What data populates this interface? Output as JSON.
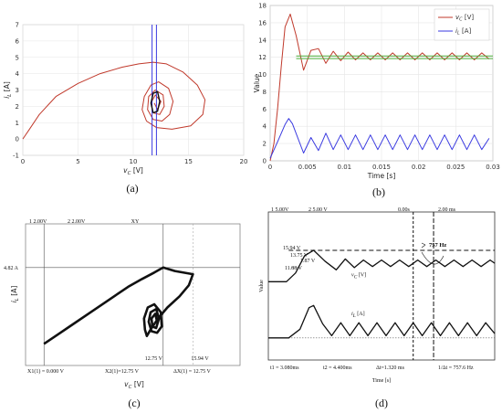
{
  "colors": {
    "red": "#c0392b",
    "blue": "#3a3ae0",
    "green": "#4caf3a",
    "black": "#111111",
    "grid": "#e6e6e6"
  },
  "chart_data": [
    {
      "id": "a",
      "caption": "(a)",
      "type": "line",
      "xlabel": "v_C [V]",
      "ylabel": "i_L [A]",
      "xlim": [
        0,
        20
      ],
      "ylim": [
        -1,
        7
      ],
      "xticks": [
        0,
        5,
        10,
        15,
        20
      ],
      "yticks": [
        -1,
        0,
        1,
        2,
        3,
        4,
        5,
        6,
        7
      ],
      "grid": true,
      "series": [
        {
          "color": "red",
          "points": [
            [
              0,
              0
            ],
            [
              0.5,
              0.5
            ],
            [
              1.5,
              1.5
            ],
            [
              3,
              2.6
            ],
            [
              5,
              3.4
            ],
            [
              7,
              4.0
            ],
            [
              9,
              4.4
            ],
            [
              10.5,
              4.6
            ],
            [
              11.8,
              4.7
            ],
            [
              13,
              4.6
            ],
            [
              14.5,
              4.1
            ],
            [
              15.8,
              3.3
            ],
            [
              16.5,
              2.4
            ],
            [
              16.3,
              1.5
            ],
            [
              15.2,
              0.8
            ],
            [
              13.5,
              0.6
            ],
            [
              12.1,
              0.7
            ],
            [
              11.2,
              1.1
            ],
            [
              10.8,
              1.8
            ],
            [
              11,
              2.6
            ],
            [
              11.6,
              3.3
            ],
            [
              12.3,
              3.5
            ],
            [
              13.2,
              3.1
            ],
            [
              13.6,
              2.3
            ],
            [
              13.3,
              1.5
            ],
            [
              12.6,
              1.1
            ],
            [
              11.8,
              1.2
            ],
            [
              11.3,
              1.8
            ],
            [
              11.4,
              2.6
            ],
            [
              12,
              3.0
            ],
            [
              12.7,
              2.7
            ],
            [
              12.8,
              2.0
            ],
            [
              12.4,
              1.5
            ],
            [
              11.8,
              1.6
            ],
            [
              11.6,
              2.2
            ],
            [
              12,
              2.7
            ],
            [
              12.5,
              2.3
            ],
            [
              12.2,
              1.8
            ],
            [
              11.9,
              2.2
            ]
          ]
        },
        {
          "color": "blue",
          "points": [
            [
              11.7,
              -1
            ],
            [
              11.7,
              7
            ]
          ]
        },
        {
          "color": "blue",
          "points": [
            [
              12.1,
              -1
            ],
            [
              12.1,
              7
            ]
          ]
        },
        {
          "color": "black",
          "points": [
            [
              11.8,
              1.6
            ],
            [
              11.6,
              2.2
            ],
            [
              11.8,
              2.8
            ],
            [
              12.2,
              2.9
            ],
            [
              12.4,
              2.3
            ],
            [
              12.2,
              1.7
            ],
            [
              11.8,
              1.6
            ]
          ]
        }
      ]
    },
    {
      "id": "b",
      "caption": "(b)",
      "type": "line",
      "xlabel": "Time [s]",
      "ylabel": "Value",
      "xlim": [
        0,
        0.03
      ],
      "ylim": [
        0,
        18
      ],
      "xticks": [
        "0",
        "0.005",
        "0.01",
        "0.015",
        "0.02",
        "0.025",
        "0.03"
      ],
      "yticks": [
        0,
        2,
        4,
        6,
        8,
        10,
        12,
        14,
        16,
        18
      ],
      "grid": true,
      "legend": [
        "v_C [V]",
        "i_L [A]"
      ],
      "legend_position": "top-right",
      "series": [
        {
          "name": "v_C [V]",
          "color": "red",
          "points": [
            [
              0,
              0
            ],
            [
              0.0005,
              2
            ],
            [
              0.001,
              6
            ],
            [
              0.0015,
              11
            ],
            [
              0.002,
              15.5
            ],
            [
              0.0027,
              17
            ],
            [
              0.0035,
              14.5
            ],
            [
              0.0045,
              10.5
            ],
            [
              0.0055,
              12.8
            ],
            [
              0.0065,
              13
            ],
            [
              0.0075,
              11.3
            ],
            [
              0.0085,
              12.7
            ],
            [
              0.0095,
              11.6
            ],
            [
              0.0105,
              12.6
            ],
            [
              0.0115,
              11.7
            ],
            [
              0.0125,
              12.5
            ],
            [
              0.0135,
              11.7
            ],
            [
              0.0145,
              12.5
            ],
            [
              0.0155,
              11.7
            ],
            [
              0.0165,
              12.5
            ],
            [
              0.0175,
              11.7
            ],
            [
              0.0185,
              12.5
            ],
            [
              0.0195,
              11.7
            ],
            [
              0.0205,
              12.5
            ],
            [
              0.0215,
              11.7
            ],
            [
              0.0225,
              12.5
            ],
            [
              0.0235,
              11.7
            ],
            [
              0.0245,
              12.5
            ],
            [
              0.0255,
              11.7
            ],
            [
              0.0265,
              12.5
            ],
            [
              0.0275,
              11.7
            ],
            [
              0.0285,
              12.5
            ],
            [
              0.0295,
              11.8
            ]
          ]
        },
        {
          "name": "i_L [A]",
          "color": "blue",
          "points": [
            [
              0,
              0.3
            ],
            [
              0.001,
              2.2
            ],
            [
              0.002,
              4.2
            ],
            [
              0.0025,
              4.9
            ],
            [
              0.003,
              4.3
            ],
            [
              0.0045,
              0.9
            ],
            [
              0.0055,
              2.7
            ],
            [
              0.0065,
              1.2
            ],
            [
              0.0075,
              3.2
            ],
            [
              0.0085,
              1.3
            ],
            [
              0.0095,
              3.0
            ],
            [
              0.0105,
              1.3
            ],
            [
              0.0115,
              3.0
            ],
            [
              0.0125,
              1.3
            ],
            [
              0.0135,
              3.0
            ],
            [
              0.0145,
              1.3
            ],
            [
              0.0155,
              3.0
            ],
            [
              0.0165,
              1.3
            ],
            [
              0.0175,
              3.0
            ],
            [
              0.0185,
              1.3
            ],
            [
              0.0195,
              3.0
            ],
            [
              0.0205,
              1.3
            ],
            [
              0.0215,
              3.0
            ],
            [
              0.0225,
              1.3
            ],
            [
              0.0235,
              3.0
            ],
            [
              0.0245,
              1.3
            ],
            [
              0.0255,
              3.0
            ],
            [
              0.0265,
              1.3
            ],
            [
              0.0275,
              3.0
            ],
            [
              0.0285,
              1.3
            ],
            [
              0.0295,
              2.6
            ]
          ]
        },
        {
          "color": "green",
          "points": [
            [
              0.0035,
              11.85
            ],
            [
              0.03,
              11.85
            ]
          ]
        },
        {
          "color": "green",
          "points": [
            [
              0.0035,
              12.15
            ],
            [
              0.03,
              12.15
            ]
          ]
        }
      ]
    },
    {
      "id": "c",
      "caption": "(c)",
      "type": "line",
      "xlabel": "v_C [V]",
      "ylabel": "i_L [A]",
      "header": {
        "ch1": "1   2.00V",
        "ch2": "2  2.00V",
        "mode": "XY"
      },
      "annotations": {
        "y_marker": "4.82 A",
        "x_marker": "12.75 V",
        "x2_marker": "15.94 V",
        "bottom_left": "X1(1) = 0.000 V",
        "bottom_mid": "X2(1)=12.75 V",
        "bottom_right": "ΔX(1) = 12.75 V"
      },
      "xlim": [
        -1,
        20
      ],
      "ylim": [
        -0.5,
        7
      ],
      "series": [
        {
          "color": "black",
          "points": [
            [
              0,
              0
            ],
            [
              1.5,
              0.6
            ],
            [
              3,
              1.2
            ],
            [
              5,
              2.0
            ],
            [
              7,
              2.8
            ],
            [
              9,
              3.6
            ],
            [
              10.5,
              4.1
            ],
            [
              11.8,
              4.5
            ],
            [
              12.75,
              4.82
            ],
            [
              14,
              4.6
            ],
            [
              15.94,
              4.4
            ],
            [
              15.5,
              3.7
            ],
            [
              14.5,
              3.0
            ],
            [
              13.2,
              2.3
            ],
            [
              12.2,
              1.6
            ],
            [
              11.4,
              0.9
            ],
            [
              11.0,
              0.5
            ],
            [
              10.8,
              0.9
            ],
            [
              10.7,
              1.6
            ],
            [
              11.1,
              2.3
            ],
            [
              11.8,
              2.5
            ],
            [
              12.5,
              2.0
            ],
            [
              12.6,
              1.1
            ],
            [
              12.1,
              0.7
            ],
            [
              11.5,
              0.8
            ],
            [
              11.2,
              1.4
            ],
            [
              11.4,
              2.0
            ],
            [
              12.0,
              2.2
            ],
            [
              12.3,
              1.6
            ],
            [
              12.0,
              1.0
            ],
            [
              11.6,
              1.1
            ],
            [
              11.5,
              1.6
            ],
            [
              11.9,
              1.9
            ],
            [
              12.1,
              1.4
            ]
          ]
        }
      ]
    },
    {
      "id": "d",
      "caption": "(d)",
      "type": "line",
      "xlabel": "Time [s]",
      "ylabel": "Value",
      "header": {
        "ch1": "1  5.00V",
        "ch2": "2  5.00 V",
        "delay": "0.00s",
        "timebase": "2.00 ms"
      },
      "annotations": {
        "freq": "757 Hz",
        "v1": "15.94 V",
        "v2": "13.75 V",
        "v3": "1.87 V",
        "v4": "11.88 V",
        "series_vc": "v_C [V]",
        "series_il": "i_L [A]",
        "t1": "t1 = 3.080ms",
        "t2": "t2 = 4.400ms",
        "dt": "Δt=1.320 ms",
        "inv": "1/Δt = 757.6 Hz"
      },
      "xlim": [
        0,
        10
      ],
      "series": [
        {
          "name": "v_C [V]",
          "color": "black",
          "points": [
            [
              0,
              6.4
            ],
            [
              0.8,
              6.4
            ],
            [
              1.2,
              7.2
            ],
            [
              1.6,
              8.8
            ],
            [
              2.0,
              9.3
            ],
            [
              2.5,
              8.3
            ],
            [
              3.0,
              7.5
            ],
            [
              3.4,
              8.5
            ],
            [
              3.8,
              7.7
            ],
            [
              4.2,
              8.4
            ],
            [
              4.6,
              7.8
            ],
            [
              5.0,
              8.4
            ],
            [
              5.4,
              7.8
            ],
            [
              5.8,
              8.4
            ],
            [
              6.2,
              7.8
            ],
            [
              6.6,
              8.4
            ],
            [
              7.0,
              7.8
            ],
            [
              7.4,
              8.4
            ],
            [
              7.8,
              7.8
            ],
            [
              8.2,
              8.4
            ],
            [
              8.6,
              7.8
            ],
            [
              9.0,
              8.4
            ],
            [
              9.4,
              7.8
            ],
            [
              9.8,
              8.4
            ],
            [
              10,
              8.1
            ]
          ]
        },
        {
          "name": "i_L [A]",
          "color": "black",
          "points": [
            [
              0,
              1.2
            ],
            [
              0.9,
              1.2
            ],
            [
              1.4,
              2.0
            ],
            [
              1.8,
              4.0
            ],
            [
              2.0,
              4.2
            ],
            [
              2.4,
              2.5
            ],
            [
              2.8,
              1.4
            ],
            [
              3.2,
              2.6
            ],
            [
              3.6,
              1.4
            ],
            [
              4.0,
              2.6
            ],
            [
              4.4,
              1.4
            ],
            [
              4.8,
              2.6
            ],
            [
              5.2,
              1.4
            ],
            [
              5.6,
              2.6
            ],
            [
              6.0,
              1.4
            ],
            [
              6.4,
              2.6
            ],
            [
              6.8,
              1.4
            ],
            [
              7.2,
              2.6
            ],
            [
              7.6,
              1.4
            ],
            [
              8.0,
              2.6
            ],
            [
              8.4,
              1.4
            ],
            [
              8.8,
              2.6
            ],
            [
              9.2,
              1.4
            ],
            [
              9.6,
              2.6
            ],
            [
              10,
              1.6
            ]
          ]
        }
      ]
    }
  ]
}
